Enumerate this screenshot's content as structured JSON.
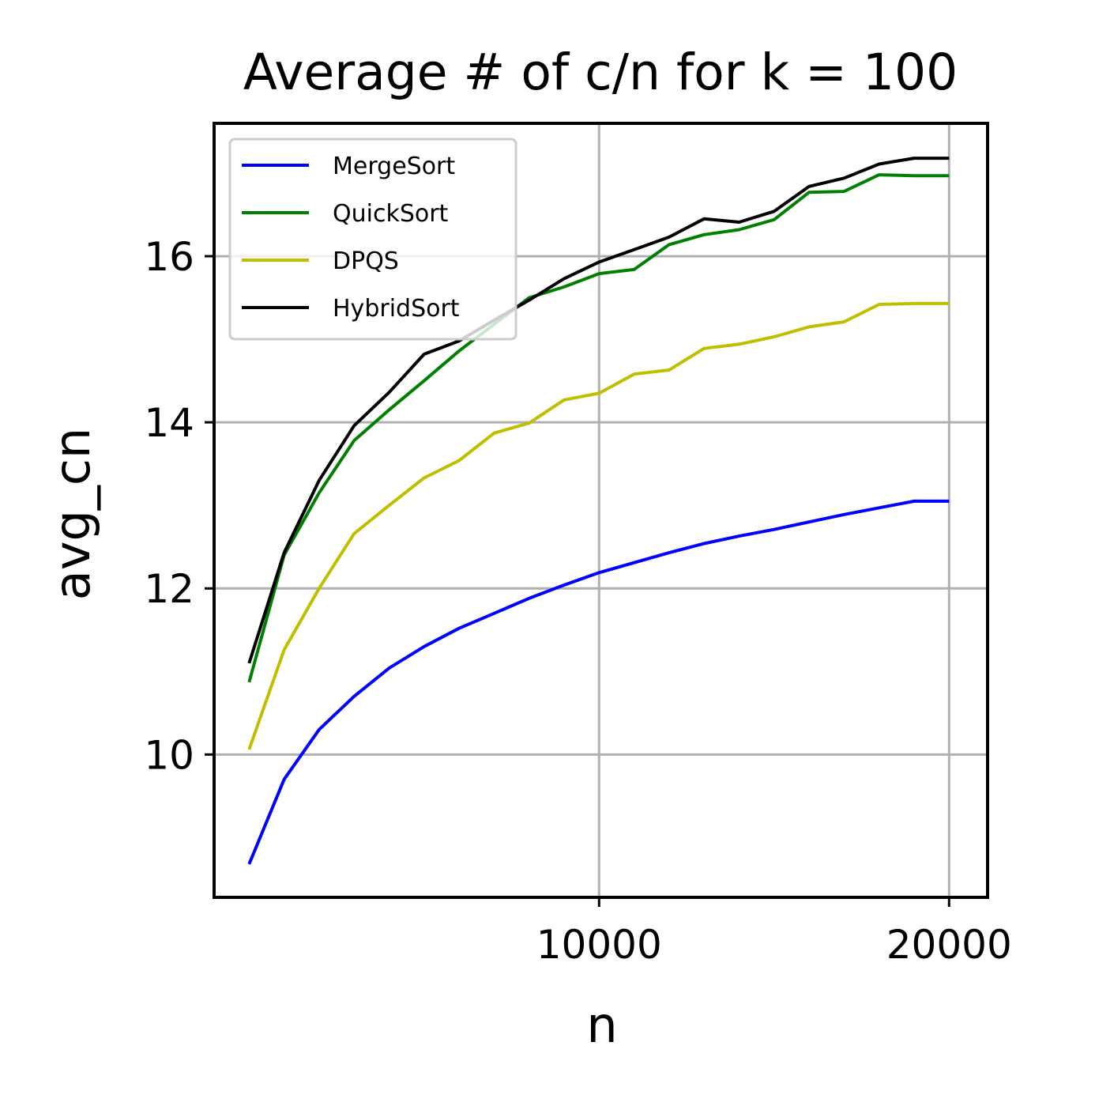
{
  "chart_data": {
    "type": "line",
    "title": "Average # of c/n for k = 100",
    "xlabel": "n",
    "ylabel": "avg_cn",
    "xlim": [
      -1000,
      21100
    ],
    "ylim": [
      8.28,
      17.6
    ],
    "x_ticks": [
      10000,
      20000
    ],
    "x_tick_labels": [
      "10000",
      "20000"
    ],
    "y_ticks": [
      10,
      12,
      14,
      16
    ],
    "y_tick_labels": [
      "10",
      "12",
      "14",
      "16"
    ],
    "grid": true,
    "legend_position": "top-left",
    "x": [
      0,
      1000,
      2000,
      3000,
      4000,
      5000,
      6000,
      7000,
      8000,
      9000,
      10000,
      11000,
      12000,
      13000,
      14000,
      15000,
      16000,
      17000,
      18000,
      19000,
      20000
    ],
    "series": [
      {
        "name": "MergeSort",
        "color": "#0000ff",
        "values": [
          8.68,
          9.7,
          10.3,
          10.7,
          11.04,
          11.3,
          11.52,
          11.7,
          11.88,
          12.04,
          12.19,
          12.31,
          12.43,
          12.54,
          12.63,
          12.71,
          12.8,
          12.89,
          12.97,
          13.05,
          13.05
        ]
      },
      {
        "name": "QuickSort",
        "color": "#008000",
        "values": [
          10.87,
          12.4,
          13.15,
          13.78,
          14.15,
          14.5,
          14.86,
          15.18,
          15.5,
          15.63,
          15.79,
          15.84,
          16.14,
          16.26,
          16.32,
          16.44,
          16.77,
          16.78,
          16.98,
          16.97,
          16.97
        ]
      },
      {
        "name": "DPQS",
        "color": "#bfbf00",
        "values": [
          10.06,
          11.26,
          12.0,
          12.66,
          13.0,
          13.33,
          13.54,
          13.87,
          13.99,
          14.27,
          14.35,
          14.58,
          14.63,
          14.89,
          14.94,
          15.03,
          15.15,
          15.21,
          15.42,
          15.43,
          15.43
        ]
      },
      {
        "name": "HybridSort",
        "color": "#000000",
        "values": [
          11.1,
          12.43,
          13.3,
          13.96,
          14.36,
          14.82,
          14.98,
          15.23,
          15.47,
          15.73,
          15.93,
          16.08,
          16.23,
          16.45,
          16.41,
          16.54,
          16.84,
          16.94,
          17.11,
          17.18,
          17.18
        ]
      }
    ]
  }
}
